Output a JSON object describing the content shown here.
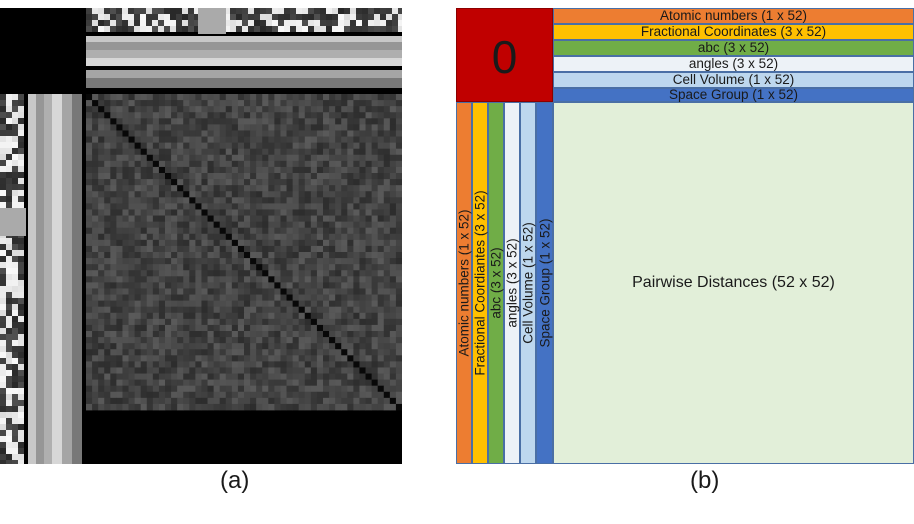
{
  "panel_a": {
    "caption": "(a)",
    "matrix_size": 52
  },
  "panel_b": {
    "caption": "(b)",
    "zero_label": "0",
    "pairwise_label": "Pairwise Distances (52 x 52)",
    "rows": [
      {
        "label": "Atomic numbers (1 x 52)",
        "color": "#ed7d31"
      },
      {
        "label": "Fractional Coordinates (3 x 52)",
        "color": "#ffc000"
      },
      {
        "label": "abc (3 x 52)",
        "color": "#70ad47"
      },
      {
        "label": "angles (3 x 52)",
        "color": "#edf2f7"
      },
      {
        "label": "Cell Volume (1 x 52)",
        "color": "#bdd7ee"
      },
      {
        "label": "Space Group (1 x 52)",
        "color": "#4472c4"
      }
    ],
    "columns": [
      {
        "label": "Atomic numbers (1 x 52)",
        "color": "#ed7d31"
      },
      {
        "label": "Fractional Coordiantes (3 x 52)",
        "color": "#ffc000"
      },
      {
        "label": "abc (3 x 52)",
        "color": "#70ad47"
      },
      {
        "label": "angles (3 x 52)",
        "color": "#edf2f7"
      },
      {
        "label": "Cell Volume (1 x 52)",
        "color": "#bdd7ee"
      },
      {
        "label": "Space Group (1 x 52)",
        "color": "#4472c4"
      }
    ],
    "pairwise_color": "#e2efd9",
    "zero_color": "#c00000"
  }
}
